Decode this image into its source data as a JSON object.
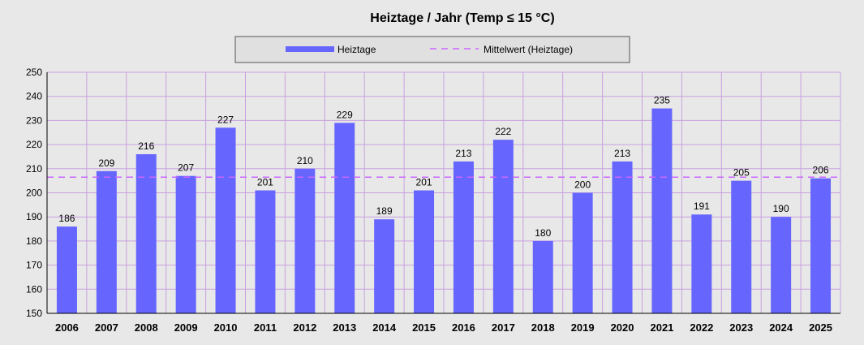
{
  "chart_data": {
    "type": "bar",
    "title": "Heiztage / Jahr   (Temp ≤ 15 °C)",
    "xlabel": "",
    "ylabel": "",
    "categories": [
      "2006",
      "2007",
      "2008",
      "2009",
      "2010",
      "2011",
      "2012",
      "2013",
      "2014",
      "2015",
      "2016",
      "2017",
      "2018",
      "2019",
      "2020",
      "2021",
      "2022",
      "2023",
      "2024",
      "2025"
    ],
    "series": [
      {
        "name": "Heiztage",
        "values": [
          186,
          209,
          216,
          207,
          227,
          201,
          210,
          229,
          189,
          201,
          213,
          222,
          180,
          200,
          213,
          235,
          191,
          205,
          190,
          206
        ]
      }
    ],
    "mean_line": {
      "name": "Mittelwert (Heiztage)",
      "value": 206.5
    },
    "ylim": [
      150,
      250
    ],
    "yticks": [
      150,
      160,
      170,
      180,
      190,
      200,
      210,
      220,
      230,
      240,
      250
    ],
    "grid": true,
    "legend_position": "top-center",
    "colors": {
      "bar": "#6666ff",
      "mean_line": "#cc66ff",
      "grid": "#c8a0e0",
      "plot_bg": "#e8e8e8",
      "axis": "#000000"
    }
  }
}
